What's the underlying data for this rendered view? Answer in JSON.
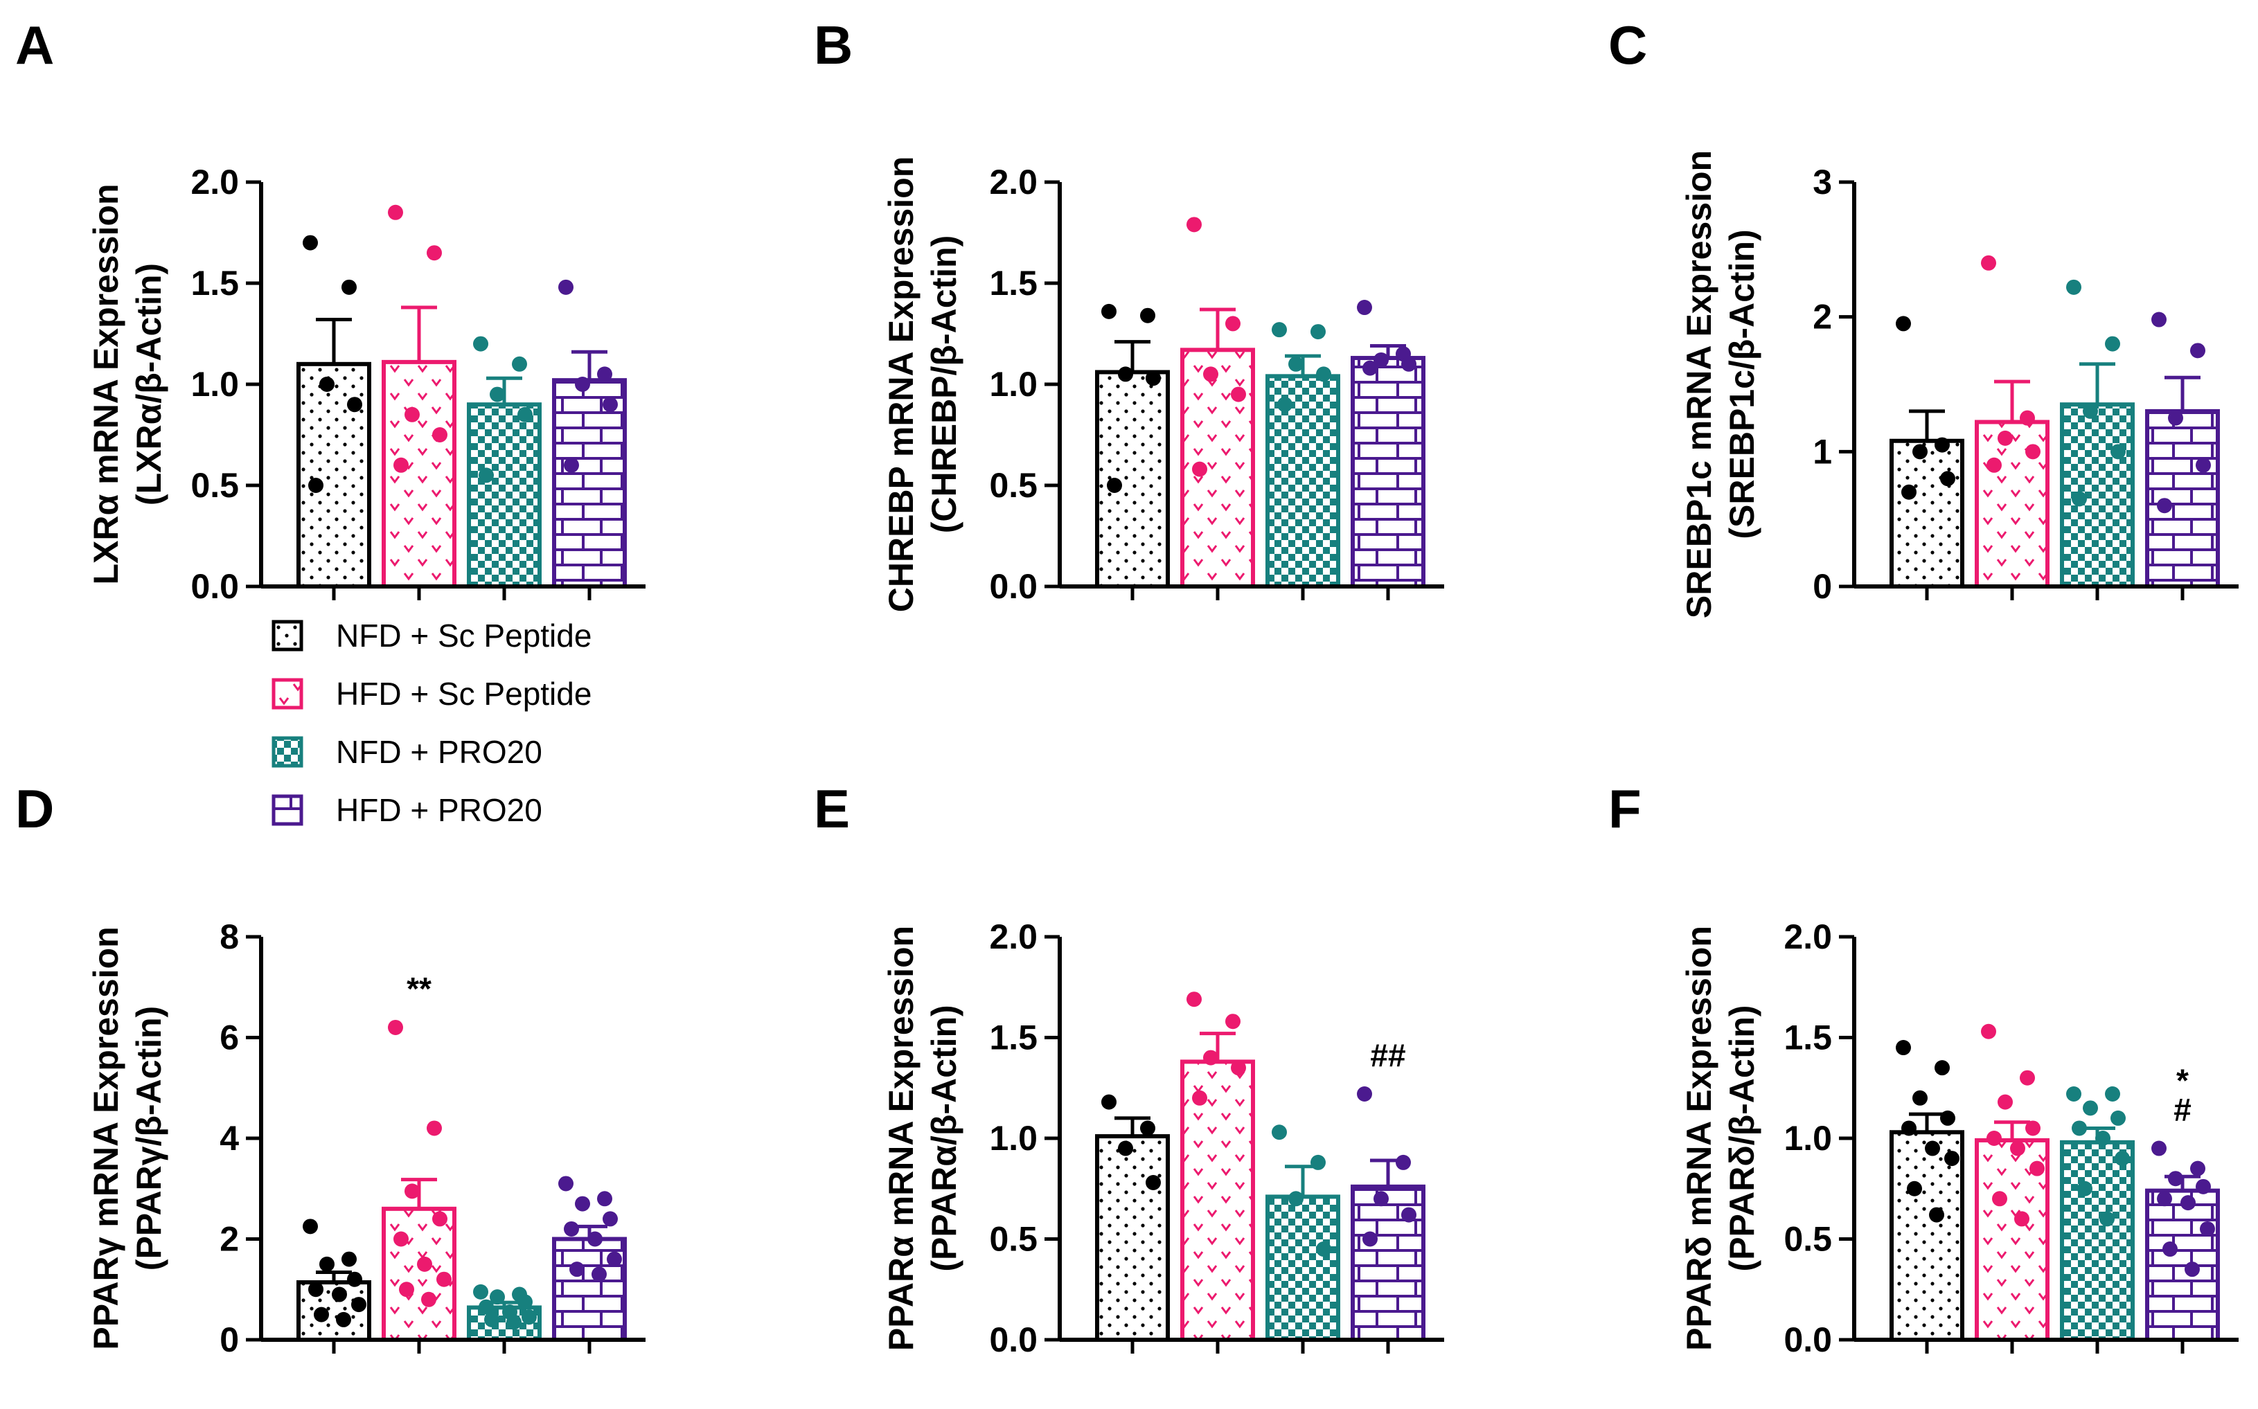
{
  "groups": [
    {
      "name": "NFD + Sc Peptide",
      "color": "#000000",
      "pattern": "dots"
    },
    {
      "name": "HFD + Sc Peptide",
      "color": "#ec1a6e",
      "pattern": "hearts"
    },
    {
      "name": "NFD + PRO20",
      "color": "#17807e",
      "pattern": "checker"
    },
    {
      "name": "HFD + PRO20",
      "color": "#4b1a8f",
      "pattern": "bricks"
    }
  ],
  "chart_data": [
    {
      "type": "bar",
      "panel": "A",
      "ylabel": [
        "LXRα mRNA Expression",
        "(LXRα/β-Actin)"
      ],
      "ylim": [
        0,
        2.0
      ],
      "ticks": [
        "0.0",
        "0.5",
        "1.0",
        "1.5",
        "2.0"
      ],
      "means": [
        1.1,
        1.11,
        0.9,
        1.02
      ],
      "sem": [
        0.22,
        0.27,
        0.13,
        0.14
      ],
      "points": [
        [
          1.7,
          1.48,
          1.0,
          0.9,
          0.5
        ],
        [
          1.85,
          1.65,
          0.85,
          0.75,
          0.6
        ],
        [
          1.2,
          1.1,
          0.95,
          0.85,
          0.55
        ],
        [
          1.48,
          1.05,
          1.0,
          0.9,
          0.6
        ]
      ],
      "annotations": [
        "",
        "",
        "",
        ""
      ]
    },
    {
      "type": "bar",
      "panel": "B",
      "ylabel": [
        "CHREBP mRNA Expression",
        "(CHREBP/β-Actin)"
      ],
      "ylim": [
        0,
        2.0
      ],
      "ticks": [
        "0.0",
        "0.5",
        "1.0",
        "1.5",
        "2.0"
      ],
      "means": [
        1.06,
        1.17,
        1.04,
        1.13
      ],
      "sem": [
        0.15,
        0.2,
        0.1,
        0.06
      ],
      "points": [
        [
          1.36,
          1.34,
          1.05,
          1.03,
          0.5
        ],
        [
          1.79,
          1.3,
          1.05,
          0.95,
          0.58
        ],
        [
          1.27,
          1.26,
          1.1,
          1.05,
          0.9
        ],
        [
          1.38,
          1.15,
          1.12,
          1.1,
          1.08
        ]
      ],
      "annotations": [
        "",
        "",
        "",
        ""
      ]
    },
    {
      "type": "bar",
      "panel": "C",
      "ylabel": [
        "SREBP1c mRNA Expression",
        "(SREBP1c/β-Actin)"
      ],
      "ylim": [
        0,
        3
      ],
      "ticks": [
        "0",
        "1",
        "2",
        "3"
      ],
      "means": [
        1.08,
        1.22,
        1.35,
        1.3
      ],
      "sem": [
        0.22,
        0.3,
        0.3,
        0.25
      ],
      "points": [
        [
          1.95,
          1.05,
          1.0,
          0.8,
          0.7
        ],
        [
          2.4,
          1.25,
          1.1,
          1.0,
          0.9
        ],
        [
          2.22,
          1.8,
          1.3,
          1.0,
          0.65
        ],
        [
          1.98,
          1.75,
          1.25,
          0.9,
          0.6
        ]
      ],
      "annotations": [
        "",
        "",
        "",
        ""
      ]
    },
    {
      "type": "bar",
      "panel": "D",
      "ylabel": [
        "PPARγ mRNA Expression",
        "(PPARγ/β-Actin)"
      ],
      "ylim": [
        0,
        8
      ],
      "ticks": [
        "0",
        "2",
        "4",
        "6",
        "8"
      ],
      "means": [
        1.14,
        2.6,
        0.64,
        2.0
      ],
      "sem": [
        0.2,
        0.58,
        0.1,
        0.25
      ],
      "points": [
        [
          2.25,
          1.6,
          1.5,
          1.2,
          1.0,
          0.9,
          0.7,
          0.5,
          0.4
        ],
        [
          6.2,
          4.2,
          2.95,
          2.4,
          2.0,
          1.5,
          1.2,
          1.0,
          0.8
        ],
        [
          0.95,
          0.9,
          0.85,
          0.75,
          0.65,
          0.55,
          0.45,
          0.4,
          0.35
        ],
        [
          3.1,
          2.8,
          2.7,
          2.4,
          2.2,
          2.0,
          1.6,
          1.4,
          1.3
        ]
      ],
      "annotations": [
        "",
        "**",
        "",
        ""
      ]
    },
    {
      "type": "bar",
      "panel": "E",
      "ylabel": [
        "PPARα mRNA Expression",
        "(PPARα/β-Actin)"
      ],
      "ylim": [
        0,
        2.0
      ],
      "ticks": [
        "0.0",
        "0.5",
        "1.0",
        "1.5",
        "2.0"
      ],
      "means": [
        1.01,
        1.38,
        0.71,
        0.76
      ],
      "sem": [
        0.09,
        0.14,
        0.15,
        0.13
      ],
      "points": [
        [
          1.18,
          1.05,
          0.95,
          0.78
        ],
        [
          1.69,
          1.58,
          1.4,
          1.35,
          1.2
        ],
        [
          1.03,
          0.88,
          0.7,
          0.45
        ],
        [
          1.22,
          0.88,
          0.7,
          0.62,
          0.5
        ]
      ],
      "annotations": [
        "",
        "",
        "",
        "##"
      ]
    },
    {
      "type": "bar",
      "panel": "F",
      "ylabel": [
        "PPARδ mRNA Expression",
        "(PPARδ/β-Actin)"
      ],
      "ylim": [
        0,
        2.0
      ],
      "ticks": [
        "0.0",
        "0.5",
        "1.0",
        "1.5",
        "2.0"
      ],
      "means": [
        1.03,
        0.99,
        0.98,
        0.74
      ],
      "sem": [
        0.09,
        0.09,
        0.07,
        0.07
      ],
      "points": [
        [
          1.45,
          1.35,
          1.2,
          1.1,
          1.05,
          0.95,
          0.9,
          0.75,
          0.62
        ],
        [
          1.53,
          1.3,
          1.18,
          1.05,
          1.0,
          0.95,
          0.85,
          0.7,
          0.6
        ],
        [
          1.22,
          1.22,
          1.15,
          1.1,
          1.05,
          1.0,
          0.9,
          0.75,
          0.6
        ],
        [
          0.95,
          0.85,
          0.8,
          0.76,
          0.7,
          0.68,
          0.55,
          0.45,
          0.35
        ]
      ],
      "annotations": [
        "",
        "",
        "",
        "* #"
      ]
    }
  ]
}
